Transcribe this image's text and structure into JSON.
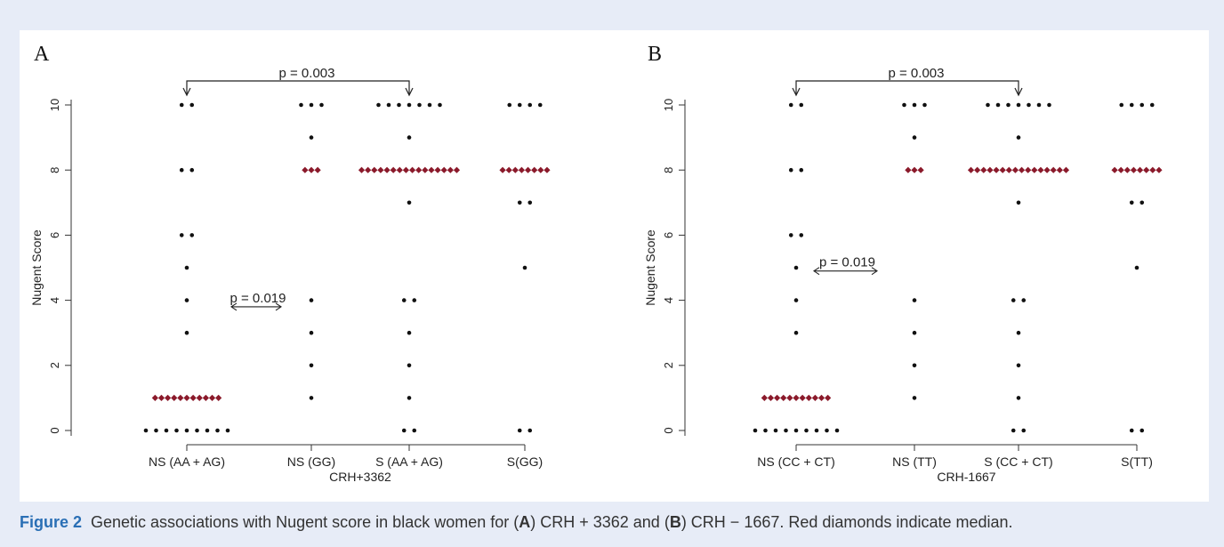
{
  "chart_data": [
    {
      "type": "scatter",
      "panel_label": "A",
      "xlabel": "CRH+3362",
      "ylabel": "Nugent Score",
      "ylim": [
        0,
        10
      ],
      "yticks": [
        0,
        2,
        4,
        6,
        8,
        10
      ],
      "categories": [
        "NS (AA + AG)",
        "NS (GG)",
        "S (AA + AG)",
        "S(GG)"
      ],
      "groups": [
        {
          "category": "NS (AA + AG)",
          "median": 1,
          "counts": [
            {
              "y": 10,
              "n": 2
            },
            {
              "y": 8,
              "n": 2
            },
            {
              "y": 6,
              "n": 2
            },
            {
              "y": 5,
              "n": 1
            },
            {
              "y": 4,
              "n": 1
            },
            {
              "y": 3,
              "n": 1
            },
            {
              "y": 1,
              "n": 11
            },
            {
              "y": 0,
              "n": 9
            }
          ]
        },
        {
          "category": "NS (GG)",
          "median": 8,
          "counts": [
            {
              "y": 10,
              "n": 3
            },
            {
              "y": 9,
              "n": 1
            },
            {
              "y": 8,
              "n": 3
            },
            {
              "y": 4,
              "n": 1
            },
            {
              "y": 3,
              "n": 1
            },
            {
              "y": 2,
              "n": 1
            },
            {
              "y": 1,
              "n": 1
            }
          ]
        },
        {
          "category": "S (AA + AG)",
          "median": 8,
          "counts": [
            {
              "y": 10,
              "n": 7
            },
            {
              "y": 9,
              "n": 1
            },
            {
              "y": 8,
              "n": 16
            },
            {
              "y": 7,
              "n": 1
            },
            {
              "y": 4,
              "n": 2
            },
            {
              "y": 3,
              "n": 1
            },
            {
              "y": 2,
              "n": 1
            },
            {
              "y": 1,
              "n": 1
            },
            {
              "y": 0,
              "n": 2
            }
          ]
        },
        {
          "category": "S(GG)",
          "median": 8,
          "counts": [
            {
              "y": 10,
              "n": 4
            },
            {
              "y": 8,
              "n": 8
            },
            {
              "y": 7,
              "n": 2
            },
            {
              "y": 5,
              "n": 1
            },
            {
              "y": 0,
              "n": 2
            }
          ]
        }
      ],
      "annotations": [
        {
          "text": "p = 0.003",
          "from": 0,
          "to": 2,
          "kind": "bracket"
        },
        {
          "text": "p = 0.019",
          "from": 0,
          "to": 1,
          "kind": "double-arrow",
          "y": 3.8
        }
      ]
    },
    {
      "type": "scatter",
      "panel_label": "B",
      "xlabel": "CRH-1667",
      "ylabel": "Nugent Score",
      "ylim": [
        0,
        10
      ],
      "yticks": [
        0,
        2,
        4,
        6,
        8,
        10
      ],
      "categories": [
        "NS (CC + CT)",
        "NS (TT)",
        "S (CC + CT)",
        "S(TT)"
      ],
      "groups": [
        {
          "category": "NS (CC + CT)",
          "median": 1,
          "counts": [
            {
              "y": 10,
              "n": 2
            },
            {
              "y": 8,
              "n": 2
            },
            {
              "y": 6,
              "n": 2
            },
            {
              "y": 5,
              "n": 1
            },
            {
              "y": 4,
              "n": 1
            },
            {
              "y": 3,
              "n": 1
            },
            {
              "y": 1,
              "n": 11
            },
            {
              "y": 0,
              "n": 9
            }
          ]
        },
        {
          "category": "NS (TT)",
          "median": 8,
          "counts": [
            {
              "y": 10,
              "n": 3
            },
            {
              "y": 9,
              "n": 1
            },
            {
              "y": 8,
              "n": 3
            },
            {
              "y": 4,
              "n": 1
            },
            {
              "y": 3,
              "n": 1
            },
            {
              "y": 2,
              "n": 1
            },
            {
              "y": 1,
              "n": 1
            }
          ]
        },
        {
          "category": "S (CC + CT)",
          "median": 8,
          "counts": [
            {
              "y": 10,
              "n": 7
            },
            {
              "y": 9,
              "n": 1
            },
            {
              "y": 8,
              "n": 16
            },
            {
              "y": 7,
              "n": 1
            },
            {
              "y": 4,
              "n": 2
            },
            {
              "y": 3,
              "n": 1
            },
            {
              "y": 2,
              "n": 1
            },
            {
              "y": 1,
              "n": 1
            },
            {
              "y": 0,
              "n": 2
            }
          ]
        },
        {
          "category": "S(TT)",
          "median": 8,
          "counts": [
            {
              "y": 10,
              "n": 4
            },
            {
              "y": 8,
              "n": 8
            },
            {
              "y": 7,
              "n": 2
            },
            {
              "y": 5,
              "n": 1
            },
            {
              "y": 0,
              "n": 2
            }
          ]
        }
      ],
      "annotations": [
        {
          "text": "p = 0.003",
          "from": 0,
          "to": 2,
          "kind": "bracket"
        },
        {
          "text": "p = 0.019",
          "from": 0,
          "to": 1,
          "kind": "double-arrow",
          "y": 4.9
        }
      ]
    }
  ],
  "caption": {
    "label": "Figure 2",
    "part1": "Genetic associations with Nugent score in black women for (",
    "a": "A",
    "part2": ") CRH + 3362 and (",
    "b": "B",
    "part3": ") CRH − 1667. Red diamonds indicate median."
  },
  "colors": {
    "point": "#111111",
    "median": "#8b1a2b",
    "axis": "#333333",
    "background": "#e7ecf7",
    "caption_label": "#2a6fb5"
  }
}
